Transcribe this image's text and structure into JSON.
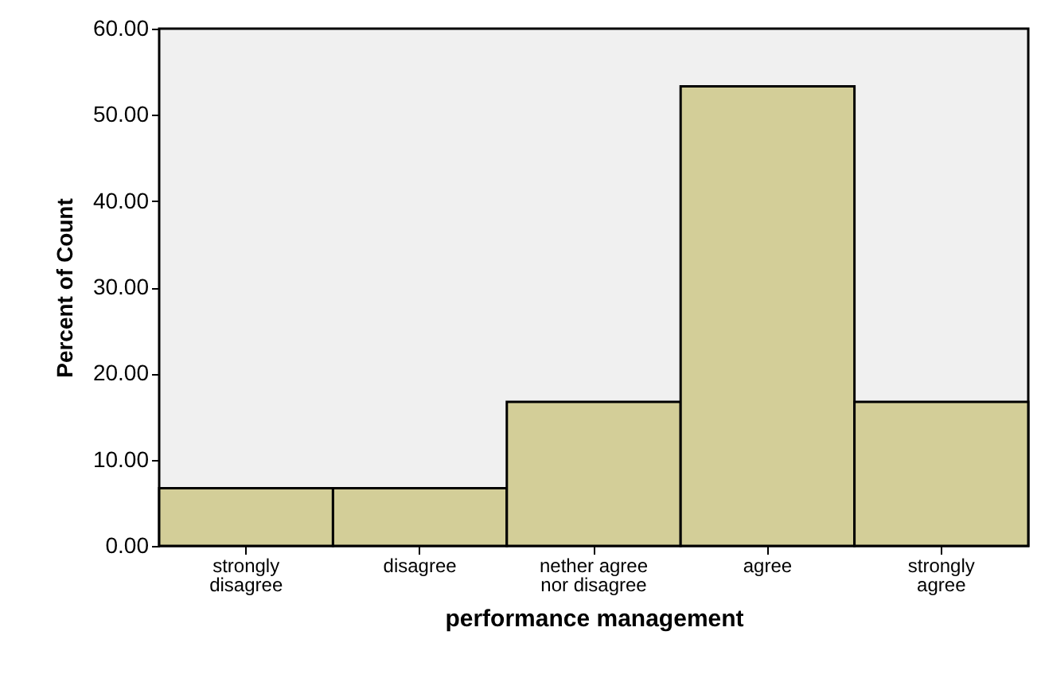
{
  "chart_data": {
    "type": "bar",
    "xlabel": "performance management",
    "ylabel": "Percent of Count",
    "categories": [
      "strongly disagree",
      "disagree",
      "nether agree nor disagree",
      "agree",
      "strongly agree"
    ],
    "values": [
      6.7,
      6.7,
      16.7,
      53.3,
      16.7
    ],
    "color": "#d3ce98",
    "ylim": [
      0,
      60
    ],
    "yticks": [
      {
        "value": 0,
        "label": "0.00"
      },
      {
        "value": 10,
        "label": "10.00"
      },
      {
        "value": 20,
        "label": "20.00"
      },
      {
        "value": 30,
        "label": "30.00"
      },
      {
        "value": 40,
        "label": "40.00"
      },
      {
        "value": 50,
        "label": "50.00"
      },
      {
        "value": 60,
        "label": "60.00"
      }
    ],
    "grid": false
  }
}
